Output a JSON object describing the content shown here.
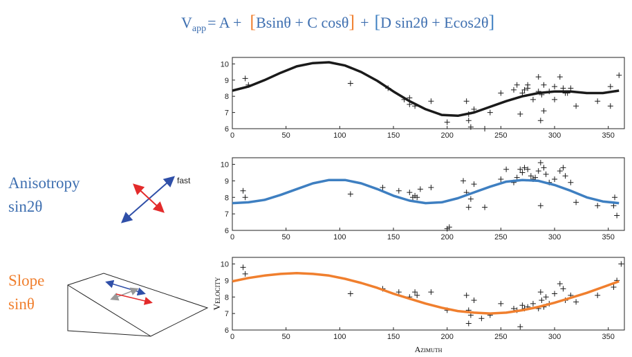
{
  "equation": {
    "lhs": "V",
    "subscript": "app",
    "parts": [
      "= A +",
      "[",
      "Bsinθ + C cosθ",
      "]",
      "+",
      "[",
      "D sin2θ + Ecos2θ",
      "]"
    ]
  },
  "annotations": {
    "anisotropy": {
      "title": "Anisotropy",
      "term": "sin2θ",
      "arrow_label": "fast"
    },
    "slope": {
      "title": "Slope",
      "term": "sinθ"
    }
  },
  "chart_data": [
    {
      "type": "scatter",
      "xlim": [
        0,
        365
      ],
      "ylim": [
        6,
        10.4
      ],
      "xticks": [
        0,
        50,
        100,
        150,
        200,
        250,
        300,
        350
      ],
      "yticks": [
        6,
        7,
        8,
        9,
        10
      ],
      "series": [
        {
          "mode": "markers",
          "color": "#1a1a1a",
          "x": [
            12,
            15,
            110,
            145,
            160,
            165,
            170,
            165,
            185,
            200,
            218,
            220,
            220,
            222,
            225,
            235,
            240,
            250,
            262,
            265,
            268,
            270,
            272,
            275,
            275,
            280,
            285,
            285,
            287,
            288,
            290,
            290,
            295,
            300,
            300,
            305,
            308,
            310,
            312,
            315,
            320,
            340,
            352,
            352,
            360
          ],
          "values": [
            9.1,
            8.7,
            8.8,
            8.5,
            7.8,
            7.5,
            7.4,
            7.9,
            7.7,
            6.4,
            7.7,
            6.9,
            6.5,
            6.1,
            7.2,
            6.0,
            7.0,
            8.2,
            8.4,
            8.7,
            6.9,
            8.2,
            8.4,
            8.5,
            8.7,
            7.8,
            9.2,
            8.3,
            6.5,
            8.1,
            7.1,
            8.7,
            8.3,
            7.8,
            8.6,
            9.2,
            8.5,
            8.2,
            8.2,
            8.5,
            7.4,
            7.7,
            7.4,
            8.6,
            9.3
          ]
        },
        {
          "mode": "line",
          "color": "#1a1a1a",
          "x": [
            0,
            15,
            30,
            45,
            60,
            75,
            90,
            105,
            120,
            135,
            150,
            165,
            180,
            195,
            210,
            225,
            240,
            255,
            270,
            285,
            300,
            315,
            330,
            345,
            360
          ],
          "values": [
            8.35,
            8.6,
            9.0,
            9.45,
            9.85,
            10.05,
            10.1,
            9.9,
            9.5,
            8.95,
            8.3,
            7.7,
            7.2,
            6.85,
            6.8,
            7.0,
            7.35,
            7.7,
            8.0,
            8.2,
            8.3,
            8.3,
            8.2,
            8.2,
            8.35
          ]
        }
      ]
    },
    {
      "type": "scatter",
      "xlim": [
        0,
        365
      ],
      "ylim": [
        6,
        10.4
      ],
      "xticks": [
        0,
        50,
        100,
        150,
        200,
        250,
        300,
        350
      ],
      "yticks": [
        6,
        7,
        8,
        9,
        10
      ],
      "series": [
        {
          "mode": "markers",
          "color": "#1a1a1a",
          "x": [
            10,
            12,
            110,
            140,
            155,
            165,
            168,
            170,
            172,
            175,
            185,
            200,
            202,
            215,
            218,
            220,
            222,
            225,
            235,
            250,
            255,
            262,
            265,
            268,
            270,
            272,
            275,
            278,
            280,
            282,
            285,
            287,
            287,
            290,
            292,
            295,
            300,
            305,
            308,
            310,
            315,
            320,
            340,
            355,
            356,
            358
          ],
          "values": [
            8.4,
            8.0,
            8.2,
            8.6,
            8.4,
            8.3,
            8.0,
            8.1,
            8.0,
            8.5,
            8.6,
            6.1,
            6.2,
            9.0,
            8.3,
            7.4,
            7.9,
            8.8,
            7.4,
            9.1,
            9.7,
            8.9,
            9.2,
            9.7,
            9.5,
            9.8,
            9.7,
            9.3,
            9.1,
            9.2,
            9.6,
            10.1,
            7.5,
            9.8,
            9.4,
            8.9,
            9.1,
            9.6,
            9.8,
            9.3,
            8.9,
            7.7,
            7.5,
            7.5,
            8.0,
            6.9
          ]
        },
        {
          "mode": "line",
          "color": "#3e7fc1",
          "x": [
            0,
            15,
            30,
            45,
            60,
            75,
            90,
            105,
            120,
            135,
            150,
            165,
            180,
            195,
            210,
            225,
            240,
            255,
            270,
            285,
            300,
            315,
            330,
            345,
            360
          ],
          "values": [
            7.65,
            7.7,
            7.85,
            8.15,
            8.5,
            8.85,
            9.05,
            9.05,
            8.85,
            8.5,
            8.1,
            7.8,
            7.65,
            7.7,
            7.95,
            8.3,
            8.65,
            8.95,
            9.05,
            9.0,
            8.75,
            8.4,
            8.0,
            7.75,
            7.65
          ]
        }
      ]
    },
    {
      "type": "scatter",
      "xlabel": "Azimuth",
      "ylabel": "Velocity",
      "xlim": [
        0,
        365
      ],
      "ylim": [
        6,
        10.4
      ],
      "xticks": [
        0,
        50,
        100,
        150,
        200,
        250,
        300,
        350
      ],
      "yticks": [
        6,
        7,
        8,
        9,
        10
      ],
      "series": [
        {
          "mode": "markers",
          "color": "#1a1a1a",
          "x": [
            10,
            12,
            110,
            140,
            155,
            165,
            170,
            172,
            185,
            200,
            218,
            220,
            220,
            222,
            225,
            232,
            240,
            250,
            262,
            265,
            268,
            270,
            272,
            275,
            280,
            285,
            287,
            288,
            290,
            292,
            295,
            300,
            305,
            308,
            310,
            315,
            320,
            340,
            355,
            358,
            362
          ],
          "values": [
            9.8,
            9.4,
            8.2,
            8.5,
            8.3,
            8.0,
            8.3,
            8.1,
            8.3,
            7.2,
            8.1,
            7.2,
            6.4,
            6.9,
            7.8,
            6.7,
            6.9,
            7.6,
            7.3,
            7.2,
            6.2,
            7.5,
            7.3,
            7.4,
            7.6,
            7.3,
            8.3,
            7.8,
            7.4,
            8.0,
            7.6,
            8.2,
            8.8,
            8.5,
            7.8,
            8.1,
            7.7,
            8.1,
            8.6,
            9.0,
            10.0
          ]
        },
        {
          "mode": "line",
          "color": "#f07f2e",
          "x": [
            0,
            15,
            30,
            45,
            60,
            75,
            90,
            105,
            120,
            135,
            150,
            165,
            180,
            195,
            210,
            225,
            240,
            255,
            270,
            285,
            300,
            315,
            330,
            345,
            360
          ],
          "values": [
            8.95,
            9.15,
            9.3,
            9.4,
            9.45,
            9.4,
            9.3,
            9.1,
            8.85,
            8.55,
            8.2,
            7.9,
            7.6,
            7.35,
            7.15,
            7.05,
            7.0,
            7.05,
            7.2,
            7.4,
            7.65,
            7.95,
            8.25,
            8.6,
            8.95
          ]
        }
      ]
    }
  ]
}
